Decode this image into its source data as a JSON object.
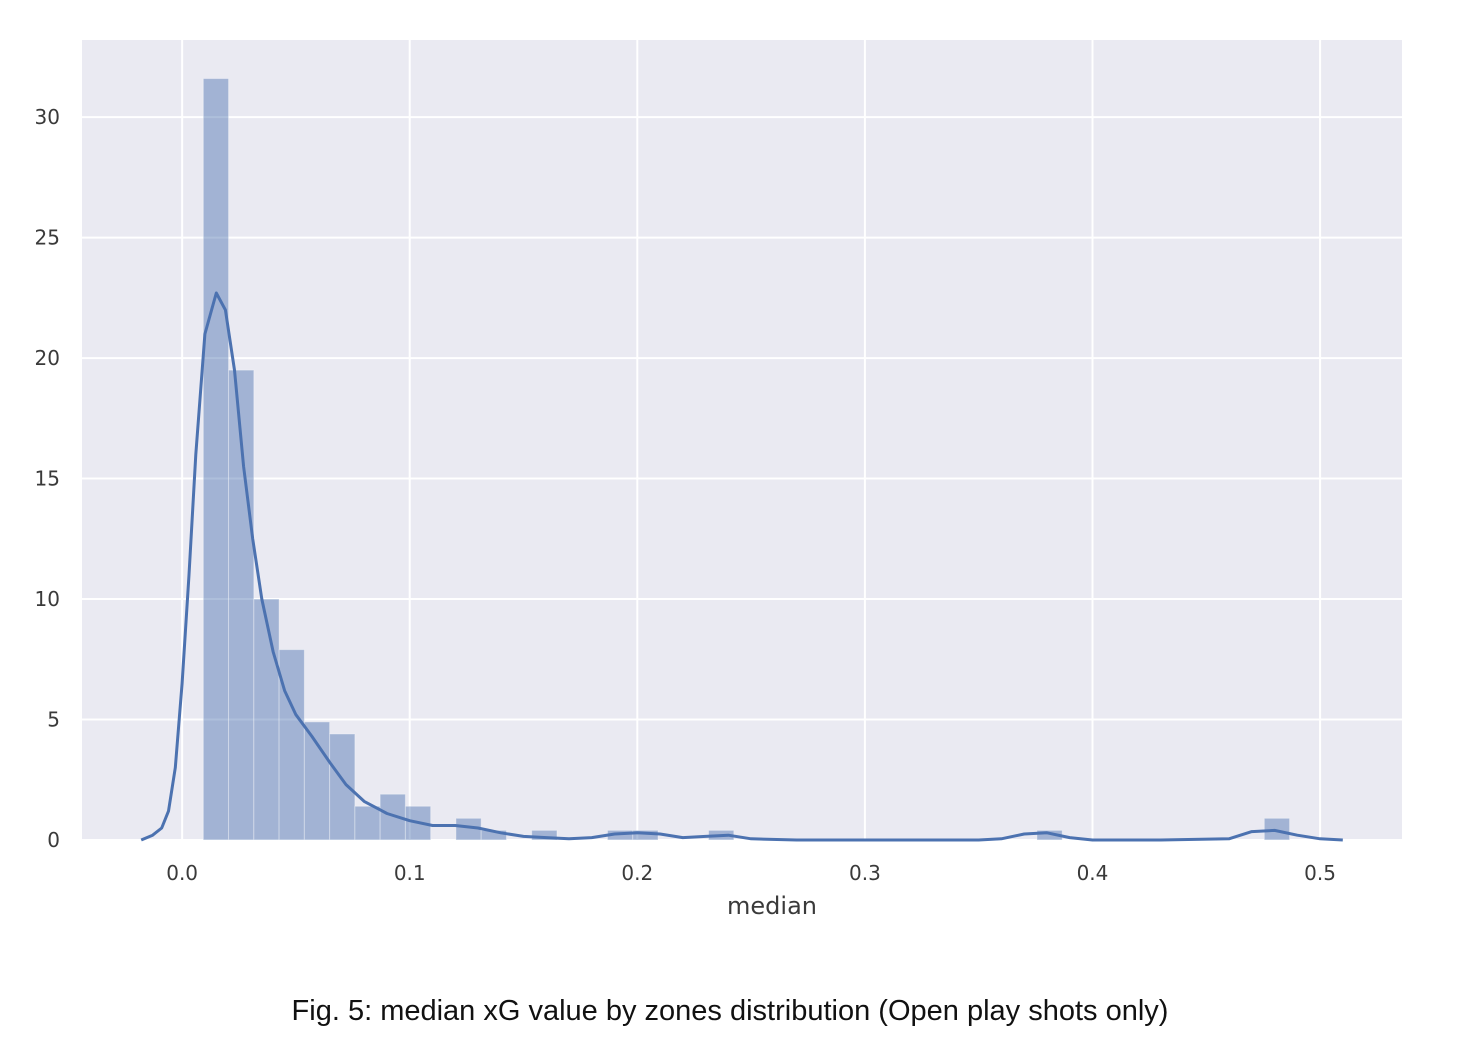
{
  "caption": "Fig. 5: median xG value by zones distribution (Open play shots only)",
  "colors": {
    "plot_background": "#eaeaf2",
    "grid": "#ffffff",
    "bar_fill": "#4c72b0",
    "bar_opacity": 0.45,
    "kde_line": "#4c72b0"
  },
  "chart_data": {
    "type": "bar",
    "subtype": "histogram with density curve",
    "title": "",
    "xlabel": "median",
    "ylabel": "",
    "xlim": [
      -0.044,
      0.536
    ],
    "ylim": [
      0,
      33.2
    ],
    "xticks": [
      0.0,
      0.1,
      0.2,
      0.3,
      0.4,
      0.5
    ],
    "xtick_labels": [
      "0.0",
      "0.1",
      "0.2",
      "0.3",
      "0.4",
      "0.5"
    ],
    "yticks": [
      0,
      5,
      10,
      15,
      20,
      25,
      30
    ],
    "ytick_labels": [
      "0",
      "5",
      "10",
      "15",
      "20",
      "25",
      "30"
    ],
    "grid": true,
    "bin_edges": [
      0.0093,
      0.0204,
      0.0315,
      0.0426,
      0.0537,
      0.0648,
      0.0759,
      0.087,
      0.0981,
      0.1092,
      0.1203,
      0.1314,
      0.1425,
      0.1536,
      0.1647,
      0.1758,
      0.1869,
      0.198,
      0.2091,
      0.2202,
      0.2313,
      0.2424,
      0.2535,
      0.2646,
      0.2757,
      0.2868,
      0.2979,
      0.309,
      0.3201,
      0.3312,
      0.3423,
      0.3534,
      0.3645,
      0.3756,
      0.3867,
      0.3978,
      0.4089,
      0.42,
      0.4311,
      0.4422,
      0.4533,
      0.4644,
      0.4755,
      0.4866
    ],
    "bin_values": [
      31.6,
      19.5,
      10.0,
      7.9,
      4.9,
      4.4,
      1.4,
      1.9,
      1.4,
      0,
      0.9,
      0.4,
      0,
      0.4,
      0,
      0,
      0.4,
      0.4,
      0,
      0,
      0.4,
      0,
      0,
      0,
      0,
      0,
      0,
      0,
      0,
      0,
      0,
      0,
      0,
      0.4,
      0,
      0,
      0,
      0,
      0,
      0,
      0,
      0,
      0.9
    ],
    "series": [
      {
        "type": "line",
        "x": [
          -0.018,
          -0.013,
          -0.009,
          -0.006,
          -0.003,
          0.0,
          0.003,
          0.006,
          0.01,
          0.015,
          0.019,
          0.023,
          0.027,
          0.031,
          0.035,
          0.04,
          0.045,
          0.05,
          0.057,
          0.065,
          0.072,
          0.08,
          0.09,
          0.1,
          0.11,
          0.12,
          0.13,
          0.14,
          0.15,
          0.16,
          0.17,
          0.18,
          0.19,
          0.2,
          0.21,
          0.22,
          0.23,
          0.24,
          0.25,
          0.27,
          0.3,
          0.35,
          0.36,
          0.37,
          0.38,
          0.39,
          0.4,
          0.43,
          0.46,
          0.47,
          0.48,
          0.49,
          0.5,
          0.51
        ],
        "y": [
          0,
          0.2,
          0.5,
          1.2,
          3.0,
          6.5,
          11.0,
          16.0,
          21.0,
          22.7,
          22.0,
          19.5,
          15.5,
          12.5,
          10.0,
          7.8,
          6.2,
          5.2,
          4.3,
          3.2,
          2.3,
          1.6,
          1.1,
          0.8,
          0.6,
          0.6,
          0.5,
          0.3,
          0.15,
          0.1,
          0.05,
          0.1,
          0.25,
          0.3,
          0.25,
          0.1,
          0.15,
          0.2,
          0.05,
          0,
          0,
          0,
          0.05,
          0.25,
          0.3,
          0.1,
          0,
          0,
          0.05,
          0.35,
          0.4,
          0.2,
          0.05,
          0
        ]
      }
    ]
  }
}
